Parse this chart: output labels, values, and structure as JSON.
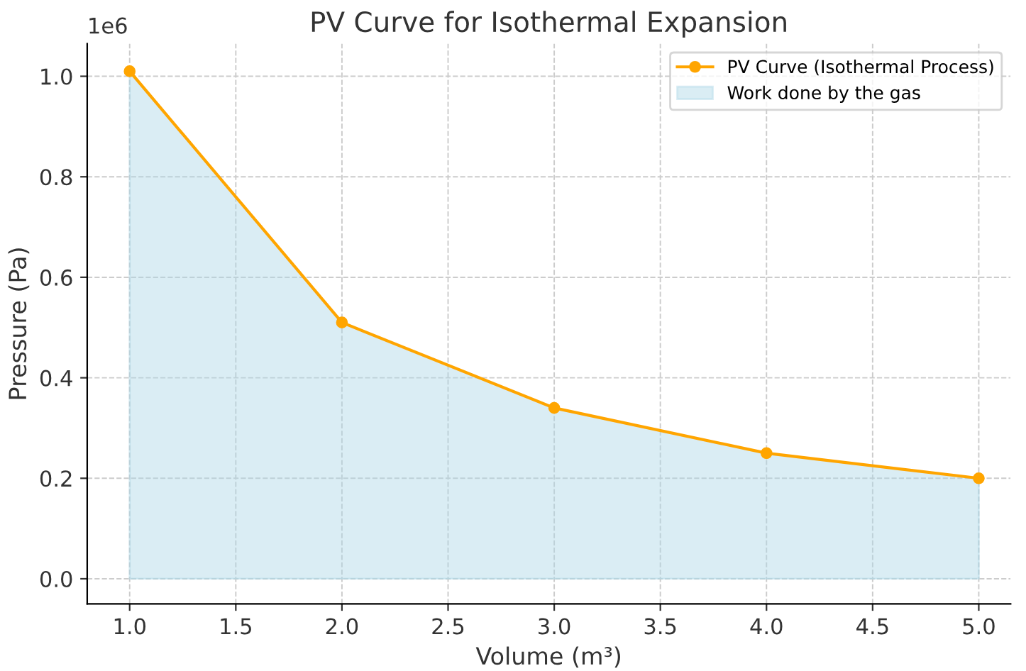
{
  "chart_data": {
    "type": "line",
    "title": "PV Curve for Isothermal Expansion",
    "xlabel": "Volume (m³)",
    "ylabel": "Pressure (Pa)",
    "x": [
      1,
      2,
      3,
      4,
      5
    ],
    "series": [
      {
        "name": "Work done by the gas",
        "type": "area",
        "color": "#add8e6",
        "values": [
          1.01,
          0.51,
          0.34,
          0.25,
          0.2
        ]
      },
      {
        "name": "PV Curve (Isothermal Process)",
        "color": "#ffa500",
        "marker": "circle",
        "values": [
          1.01,
          0.51,
          0.34,
          0.25,
          0.2
        ]
      }
    ],
    "xlim": [
      0.8,
      5.15
    ],
    "xticks": [
      {
        "value": 1,
        "label": "1.0"
      },
      1.5,
      {
        "value": 2,
        "label": "2.0"
      },
      2.5,
      {
        "value": 3,
        "label": "3.0"
      },
      3.5,
      {
        "value": 4,
        "label": "4.0"
      },
      4.5,
      {
        "value": 5,
        "label": "5.0"
      }
    ],
    "ylim": [
      -0.05,
      1.065
    ],
    "yticks": [
      {
        "value": 0,
        "label": "0.0"
      },
      0.2,
      0.4,
      0.6,
      0.8,
      {
        "value": 1,
        "label": "1.0"
      }
    ],
    "annotations": [
      "1e6"
    ],
    "grid": true,
    "legend": "top right"
  }
}
